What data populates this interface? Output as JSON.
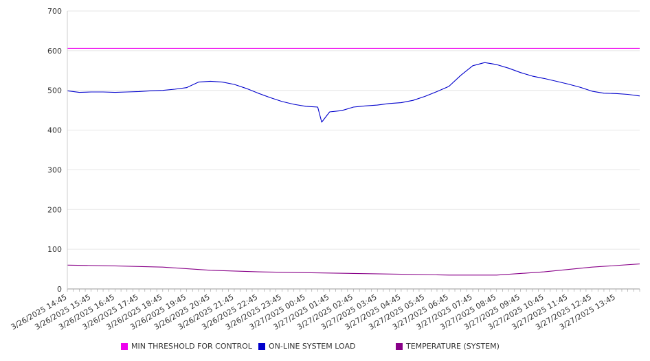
{
  "chart_data": {
    "type": "line",
    "ylim": [
      0,
      700
    ],
    "y_ticks": [
      0,
      100,
      200,
      300,
      400,
      500,
      600,
      700
    ],
    "x_tick_labels": [
      "3/26/2025 14:45",
      "3/26/2025 15:45",
      "3/26/2025 16:45",
      "3/26/2025 17:45",
      "3/26/2025 18:45",
      "3/26/2025 19:45",
      "3/26/2025 20:45",
      "3/26/2025 21:45",
      "3/26/2025 22:45",
      "3/26/2025 23:45",
      "3/27/2025 00:45",
      "3/27/2025 01:45",
      "3/27/2025 02:45",
      "3/27/2025 03:45",
      "3/27/2025 04:45",
      "3/27/2025 05:45",
      "3/27/2025 06:45",
      "3/27/2025 07:45",
      "3/27/2025 08:45",
      "3/27/2025 09:45",
      "3/27/2025 10:45",
      "3/27/2025 11:45",
      "3/27/2025 12:45",
      "3/27/2025 13:45"
    ],
    "x_end": "3/27/2025 14:45",
    "grid": true,
    "legend_position": "bottom",
    "series": [
      {
        "name": "MIN THRESHOLD FOR CONTROL",
        "color": "#ee00ee",
        "points": [
          [
            "3/26/2025 14:45",
            606
          ],
          [
            "3/27/2025 14:45",
            606
          ]
        ]
      },
      {
        "name": "ON-LINE SYSTEM LOAD",
        "color": "#0000cc",
        "points": [
          [
            "3/26/2025 14:45",
            499
          ],
          [
            "3/26/2025 15:15",
            495
          ],
          [
            "3/26/2025 15:45",
            496
          ],
          [
            "3/26/2025 16:15",
            496
          ],
          [
            "3/26/2025 16:45",
            495
          ],
          [
            "3/26/2025 17:15",
            496
          ],
          [
            "3/26/2025 17:45",
            497
          ],
          [
            "3/26/2025 18:15",
            499
          ],
          [
            "3/26/2025 18:45",
            500
          ],
          [
            "3/26/2025 19:15",
            503
          ],
          [
            "3/26/2025 19:45",
            507
          ],
          [
            "3/26/2025 20:15",
            521
          ],
          [
            "3/26/2025 20:45",
            523
          ],
          [
            "3/26/2025 21:15",
            521
          ],
          [
            "3/26/2025 21:45",
            515
          ],
          [
            "3/26/2025 22:15",
            505
          ],
          [
            "3/26/2025 22:45",
            493
          ],
          [
            "3/26/2025 23:15",
            482
          ],
          [
            "3/26/2025 23:45",
            472
          ],
          [
            "3/27/2025 00:15",
            465
          ],
          [
            "3/27/2025 00:45",
            460
          ],
          [
            "3/27/2025 01:15",
            458
          ],
          [
            "3/27/2025 01:25",
            420
          ],
          [
            "3/27/2025 01:45",
            446
          ],
          [
            "3/27/2025 02:15",
            449
          ],
          [
            "3/27/2025 02:45",
            458
          ],
          [
            "3/27/2025 03:15",
            461
          ],
          [
            "3/27/2025 03:45",
            463
          ],
          [
            "3/27/2025 04:15",
            467
          ],
          [
            "3/27/2025 04:45",
            469
          ],
          [
            "3/27/2025 05:15",
            475
          ],
          [
            "3/27/2025 05:45",
            485
          ],
          [
            "3/27/2025 06:15",
            497
          ],
          [
            "3/27/2025 06:45",
            510
          ],
          [
            "3/27/2025 07:15",
            538
          ],
          [
            "3/27/2025 07:45",
            562
          ],
          [
            "3/27/2025 08:15",
            570
          ],
          [
            "3/27/2025 08:45",
            565
          ],
          [
            "3/27/2025 09:15",
            556
          ],
          [
            "3/27/2025 09:45",
            545
          ],
          [
            "3/27/2025 10:15",
            536
          ],
          [
            "3/27/2025 10:45",
            530
          ],
          [
            "3/27/2025 11:15",
            523
          ],
          [
            "3/27/2025 11:45",
            516
          ],
          [
            "3/27/2025 12:15",
            508
          ],
          [
            "3/27/2025 12:45",
            498
          ],
          [
            "3/27/2025 13:15",
            493
          ],
          [
            "3/27/2025 13:45",
            492
          ],
          [
            "3/27/2025 14:15",
            490
          ],
          [
            "3/27/2025 14:45",
            486
          ]
        ]
      },
      {
        "name": "TEMPERATURE (SYSTEM)",
        "color": "#880088",
        "points": [
          [
            "3/26/2025 14:45",
            60
          ],
          [
            "3/26/2025 16:45",
            58
          ],
          [
            "3/26/2025 18:45",
            55
          ],
          [
            "3/26/2025 20:45",
            47
          ],
          [
            "3/26/2025 22:45",
            43
          ],
          [
            "3/27/2025 00:45",
            41
          ],
          [
            "3/27/2025 02:45",
            39
          ],
          [
            "3/27/2025 04:45",
            37
          ],
          [
            "3/27/2025 06:45",
            35
          ],
          [
            "3/27/2025 08:45",
            35
          ],
          [
            "3/27/2025 10:45",
            43
          ],
          [
            "3/27/2025 12:45",
            55
          ],
          [
            "3/27/2025 14:45",
            63
          ]
        ]
      }
    ]
  }
}
